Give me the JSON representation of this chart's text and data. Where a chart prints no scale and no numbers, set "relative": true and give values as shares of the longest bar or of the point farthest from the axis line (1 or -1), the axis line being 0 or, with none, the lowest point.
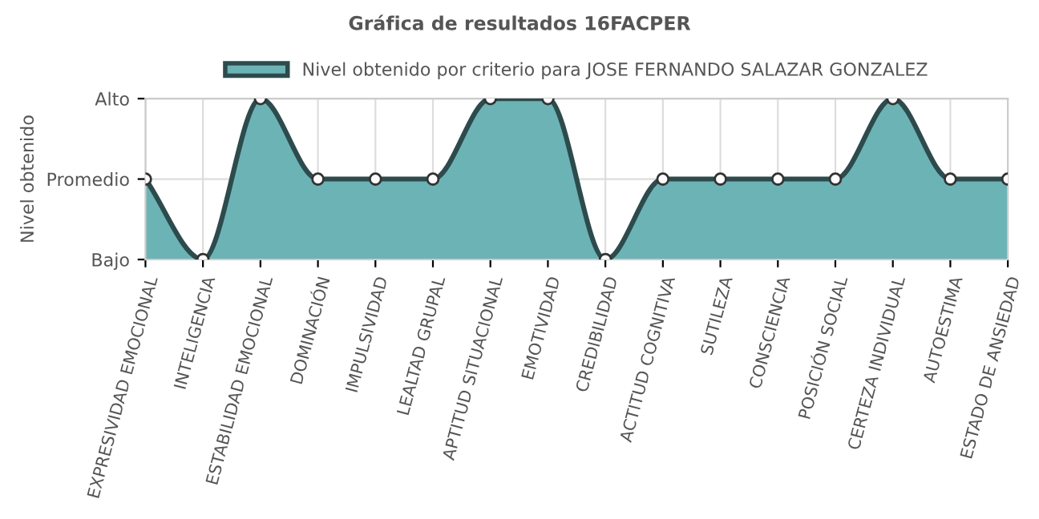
{
  "chart_data": {
    "type": "area",
    "title": "Gráfica de resultados 16FACPER",
    "ylabel": "Nivel obtenido",
    "relative": true,
    "categories": [
      "EXPRESIVIDAD EMOCIONAL",
      "INTELIGENCIA",
      "ESTABILIDAD EMOCIONAL",
      "DOMINACIÓN",
      "IMPULSIVIDAD",
      "LEALTAD GRUPAL",
      "APTITUD SITUACIONAL",
      "EMOTIVIDAD",
      "CREDIBILIDAD",
      "ACTITUD COGNITIVA",
      "SUTILEZA",
      "CONSCIENCIA",
      "POSICIÓN SOCIAL",
      "CERTEZA INDIVIDUAL",
      "AUTOESTIMA",
      "ESTADO DE ANSIEDAD"
    ],
    "y_categories": [
      "Alto",
      "Promedio",
      "Bajo"
    ],
    "series": [
      {
        "name": "Nivel obtenido por criterio para JOSE FERNANDO SALAZAR GONZALEZ",
        "color": "#6cb3b6",
        "values": [
          0.5,
          0,
          1,
          0.5,
          0.5,
          0.5,
          1,
          1,
          0,
          0.5,
          0.5,
          0.5,
          0.5,
          1,
          0.5,
          0.5
        ]
      }
    ],
    "grid": true,
    "legend": "top",
    "marker": "circle",
    "line_style": "solid"
  }
}
